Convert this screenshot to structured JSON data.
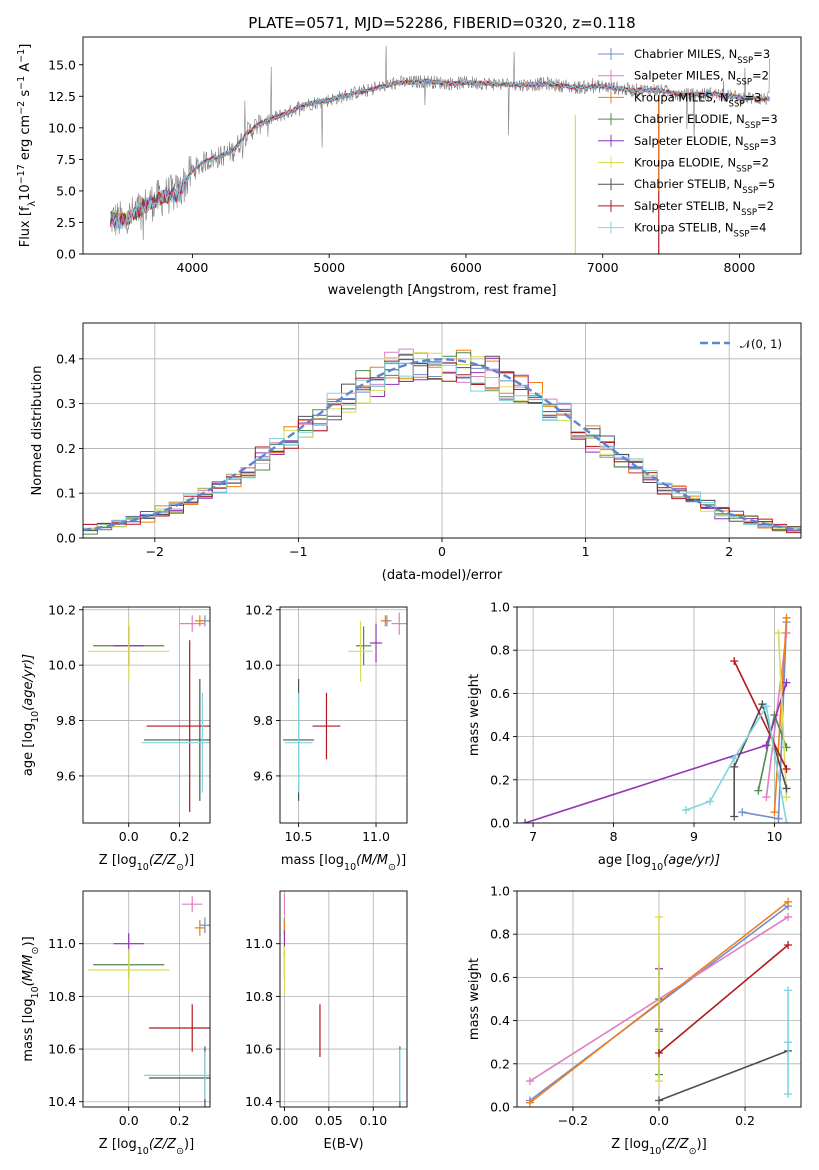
{
  "figure": {
    "title": "PLATE=0571, MJD=52286, FIBERID=0320, z=0.118"
  },
  "series_labels": [
    "Chabrier MILES, N",
    "Salpeter MILES, N",
    "Kroupa MILES, N",
    "Chabrier ELODIE, N",
    "Salpeter ELODIE, N",
    "Kroupa ELODIE, N",
    "Chabrier STELIB, N",
    "Salpeter STELIB, N",
    "Kroupa STELIB, N"
  ],
  "series_ssp": [
    "3",
    "2",
    "3",
    "3",
    "3",
    "2",
    "5",
    "2",
    "4"
  ],
  "legend_sub": "SSP",
  "series_colors": [
    "#6f8fd0",
    "#e07ec2",
    "#ef7f1a",
    "#4f8a4f",
    "#8e35b8",
    "#d8dc5a",
    "#505050",
    "#b2181b",
    "#80d4de"
  ],
  "chart_data": [
    {
      "type": "line",
      "title": "PLATE=0571, MJD=52286, FIBERID=0320, z=0.118",
      "xlabel": "wavelength [Angstrom, rest frame]",
      "ylabel_parts": [
        "Flux [f",
        "λ",
        "10",
        "−17",
        " erg cm",
        "−2",
        " s",
        "−1",
        " A",
        "−1",
        "]"
      ],
      "xlim": [
        3200,
        8450
      ],
      "ylim": [
        0,
        17.2
      ],
      "xticks": [
        4000,
        5000,
        6000,
        7000,
        8000
      ],
      "yticks": [
        0.0,
        2.5,
        5.0,
        7.5,
        10.0,
        12.5,
        15.0
      ],
      "ytick_labels": [
        "0.0",
        "2.5",
        "5.0",
        "7.5",
        "10.0",
        "12.5",
        "15.0"
      ],
      "legend_position": "right",
      "continuum": [
        [
          3400,
          2.8
        ],
        [
          3500,
          2.6
        ],
        [
          3600,
          3.4
        ],
        [
          3700,
          4.1
        ],
        [
          3800,
          4.6
        ],
        [
          3900,
          4.9
        ],
        [
          4000,
          6.6
        ],
        [
          4100,
          7.4
        ],
        [
          4200,
          7.7
        ],
        [
          4300,
          8.2
        ],
        [
          4400,
          9.6
        ],
        [
          4500,
          10.4
        ],
        [
          4600,
          10.8
        ],
        [
          4700,
          11.2
        ],
        [
          4800,
          11.8
        ],
        [
          4900,
          12.0
        ],
        [
          5000,
          12.2
        ],
        [
          5100,
          12.5
        ],
        [
          5200,
          12.8
        ],
        [
          5300,
          13.0
        ],
        [
          5400,
          13.3
        ],
        [
          5500,
          13.6
        ],
        [
          5600,
          13.6
        ],
        [
          5700,
          13.7
        ],
        [
          5800,
          13.6
        ],
        [
          5900,
          13.5
        ],
        [
          6000,
          13.6
        ],
        [
          6200,
          13.5
        ],
        [
          6400,
          13.4
        ],
        [
          6600,
          13.5
        ],
        [
          6800,
          13.2
        ],
        [
          7000,
          13.3
        ],
        [
          7200,
          13.0
        ],
        [
          7400,
          13.0
        ],
        [
          7600,
          12.6
        ],
        [
          7800,
          12.7
        ],
        [
          8000,
          12.4
        ],
        [
          8200,
          12.3
        ]
      ]
    },
    {
      "type": "histogram",
      "xlabel": "(data-model)/error",
      "ylabel": "Normed distribution",
      "xlim": [
        -2.5,
        2.5
      ],
      "ylim": [
        0,
        0.48
      ],
      "xticks": [
        -2,
        -1,
        0,
        1,
        2
      ],
      "xtick_labels": [
        "−2",
        "−1",
        "0",
        "1",
        "2"
      ],
      "yticks": [
        0.0,
        0.1,
        0.2,
        0.3,
        0.4
      ],
      "ytick_labels": [
        "0.0",
        "0.1",
        "0.2",
        "0.3",
        "0.4"
      ],
      "bin_width": 0.1,
      "gaussian_label": "𝒩(0, 1)",
      "gaussian_mean": 0,
      "gaussian_sigma": 1,
      "legend_position": "top-right"
    },
    {
      "type": "scatter",
      "xlabel_parts": [
        "Z [log",
        "10",
        "(Z/Z",
        "⊙",
        ")]"
      ],
      "ylabel_parts": [
        "age  [log",
        "10",
        "(age/yr)]"
      ],
      "xlim": [
        -0.18,
        0.32
      ],
      "ylim": [
        9.43,
        10.21
      ],
      "xticks": [
        0.0,
        0.2
      ],
      "xtick_labels": [
        "0.0",
        "0.2"
      ],
      "yticks": [
        9.6,
        9.8,
        10.0,
        10.2
      ],
      "ytick_labels": [
        "9.6",
        "9.8",
        "10.0",
        "10.2"
      ],
      "points": [
        {
          "series": 0,
          "x": 0.3,
          "y": 10.16,
          "xerr": 0.02,
          "yerr": 0.02
        },
        {
          "series": 1,
          "x": 0.25,
          "y": 10.15,
          "xerr": 0.05,
          "yerr": 0.03
        },
        {
          "series": 2,
          "x": 0.28,
          "y": 10.16,
          "xerr": 0.02,
          "yerr": 0.02
        },
        {
          "series": 3,
          "x": 0.0,
          "y": 10.07,
          "xerr": 0.14,
          "yerr": 0.07
        },
        {
          "series": 4,
          "x": 0.0,
          "y": 10.07,
          "xerr": 0.06,
          "yerr": 0.07
        },
        {
          "series": 5,
          "x": 0.0,
          "y": 10.05,
          "xerr": 0.16,
          "yerr": 0.11
        },
        {
          "series": 6,
          "x": 0.28,
          "y": 9.73,
          "xerr": 0.22,
          "yerr": 0.22
        },
        {
          "series": 7,
          "x": 0.24,
          "y": 9.78,
          "xerr": 0.17,
          "yerr": 0.31
        },
        {
          "series": 8,
          "x": 0.29,
          "y": 9.72,
          "xerr": 0.24,
          "yerr": 0.18
        }
      ]
    },
    {
      "type": "scatter",
      "xlabel_parts": [
        "mass [log",
        "10",
        "(M/M",
        "⊙",
        ")]"
      ],
      "xlim": [
        10.38,
        11.2
      ],
      "ylim": [
        9.43,
        10.21
      ],
      "xticks": [
        10.5,
        11.0
      ],
      "xtick_labels": [
        "10.5",
        "11.0"
      ],
      "yticks": [
        9.6,
        9.8,
        10.0,
        10.2
      ],
      "ytick_labels": [
        "9.6",
        "9.8",
        "10.0",
        "10.2"
      ],
      "points": [
        {
          "series": 0,
          "x": 11.07,
          "y": 10.16,
          "xerr": 0.03,
          "yerr": 0.02
        },
        {
          "series": 1,
          "x": 11.15,
          "y": 10.15,
          "xerr": 0.05,
          "yerr": 0.04
        },
        {
          "series": 2,
          "x": 11.06,
          "y": 10.16,
          "xerr": 0.03,
          "yerr": 0.02
        },
        {
          "series": 3,
          "x": 10.92,
          "y": 10.07,
          "xerr": 0.05,
          "yerr": 0.07
        },
        {
          "series": 4,
          "x": 11.0,
          "y": 10.08,
          "xerr": 0.04,
          "yerr": 0.07
        },
        {
          "series": 5,
          "x": 10.9,
          "y": 10.05,
          "xerr": 0.08,
          "yerr": 0.11
        },
        {
          "series": 6,
          "x": 10.5,
          "y": 9.73,
          "xerr": 0.1,
          "yerr": 0.22
        },
        {
          "series": 7,
          "x": 10.68,
          "y": 9.78,
          "xerr": 0.09,
          "yerr": 0.12
        },
        {
          "series": 8,
          "x": 10.5,
          "y": 9.72,
          "xerr": 0.09,
          "yerr": 0.18
        }
      ]
    },
    {
      "type": "line",
      "xlabel_parts": [
        "age  [log",
        "10",
        "(age/yr)]"
      ],
      "ylabel": "mass weight",
      "xlim": [
        6.8,
        10.33
      ],
      "ylim": [
        0,
        1.0
      ],
      "xticks": [
        7,
        8,
        9,
        10
      ],
      "xtick_labels": [
        "7",
        "8",
        "9",
        "10"
      ],
      "yticks": [
        0.0,
        0.2,
        0.4,
        0.6,
        0.8,
        1.0
      ],
      "ytick_labels": [
        "0.0",
        "0.2",
        "0.4",
        "0.6",
        "0.8",
        "1.0"
      ],
      "series": [
        {
          "series": 0,
          "x": [
            9.6,
            10.05,
            10.15
          ],
          "y": [
            0.05,
            0.02,
            0.93
          ]
        },
        {
          "series": 1,
          "x": [
            9.9,
            10.15
          ],
          "y": [
            0.12,
            0.88
          ]
        },
        {
          "series": 2,
          "x": [
            10.0,
            10.15
          ],
          "y": [
            0.05,
            0.95
          ]
        },
        {
          "series": 3,
          "x": [
            9.8,
            10.0,
            10.15
          ],
          "y": [
            0.15,
            0.5,
            0.35
          ]
        },
        {
          "series": 4,
          "x": [
            6.9,
            9.9,
            10.15
          ],
          "y": [
            0.0,
            0.36,
            0.65
          ]
        },
        {
          "series": 5,
          "x": [
            10.05,
            10.15
          ],
          "y": [
            0.88,
            0.12
          ]
        },
        {
          "series": 6,
          "x": [
            9.5,
            9.5,
            9.85,
            10.15
          ],
          "y": [
            0.03,
            0.26,
            0.55,
            0.16
          ]
        },
        {
          "series": 7,
          "x": [
            9.5,
            10.15
          ],
          "y": [
            0.75,
            0.25
          ]
        },
        {
          "series": 8,
          "x": [
            8.9,
            9.2,
            9.5,
            9.9,
            10.15
          ],
          "y": [
            0.06,
            0.1,
            0.3,
            0.54,
            0.0
          ]
        }
      ]
    },
    {
      "type": "scatter",
      "xlabel_parts": [
        "Z [log",
        "10",
        "(Z/Z",
        "⊙",
        ")]"
      ],
      "ylabel_parts": [
        "mass [log",
        "10",
        "(M/M",
        "⊙",
        ")]"
      ],
      "xlim": [
        -0.18,
        0.32
      ],
      "ylim": [
        10.38,
        11.2
      ],
      "xticks": [
        0.0,
        0.2
      ],
      "xtick_labels": [
        "0.0",
        "0.2"
      ],
      "yticks": [
        10.4,
        10.6,
        10.8,
        11.0
      ],
      "ytick_labels": [
        "10.4",
        "10.6",
        "10.8",
        "11.0"
      ],
      "points": [
        {
          "series": 0,
          "x": 0.3,
          "y": 11.07,
          "xerr": 0.02,
          "yerr": 0.03
        },
        {
          "series": 1,
          "x": 0.25,
          "y": 11.15,
          "xerr": 0.04,
          "yerr": 0.03
        },
        {
          "series": 2,
          "x": 0.28,
          "y": 11.06,
          "xerr": 0.02,
          "yerr": 0.03
        },
        {
          "series": 3,
          "x": 0.0,
          "y": 10.92,
          "xerr": 0.14,
          "yerr": 0.05
        },
        {
          "series": 4,
          "x": 0.0,
          "y": 11.0,
          "xerr": 0.06,
          "yerr": 0.04
        },
        {
          "series": 5,
          "x": 0.0,
          "y": 10.9,
          "xerr": 0.16,
          "yerr": 0.08
        },
        {
          "series": 6,
          "x": 0.3,
          "y": 10.49,
          "xerr": 0.22,
          "yerr": 0.12
        },
        {
          "series": 7,
          "x": 0.25,
          "y": 10.68,
          "xerr": 0.17,
          "yerr": 0.09
        },
        {
          "series": 8,
          "x": 0.3,
          "y": 10.5,
          "xerr": 0.24,
          "yerr": 0.09
        }
      ]
    },
    {
      "type": "scatter",
      "xlabel": "E(B-V)",
      "xlim": [
        -0.005,
        0.138
      ],
      "ylim": [
        10.38,
        11.2
      ],
      "xticks": [
        0.0,
        0.05,
        0.1
      ],
      "xtick_labels": [
        "0.00",
        "0.05",
        "0.10"
      ],
      "yticks": [
        10.4,
        10.6,
        10.8,
        11.0
      ],
      "ytick_labels": [
        "10.4",
        "10.6",
        "10.8",
        "11.0"
      ],
      "points": [
        {
          "series": 0,
          "x": 0.0,
          "y": 11.07,
          "yerr": 0.03
        },
        {
          "series": 1,
          "x": 0.0,
          "y": 11.15,
          "yerr": 0.04
        },
        {
          "series": 2,
          "x": 0.0,
          "y": 11.06,
          "yerr": 0.03
        },
        {
          "series": 3,
          "x": 0.0,
          "y": 10.92,
          "yerr": 0.05
        },
        {
          "series": 4,
          "x": 0.0,
          "y": 11.0,
          "yerr": 0.05
        },
        {
          "series": 5,
          "x": 0.0,
          "y": 10.9,
          "yerr": 0.09
        },
        {
          "series": 6,
          "x": 0.13,
          "y": 10.49,
          "yerr": 0.12
        },
        {
          "series": 7,
          "x": 0.04,
          "y": 10.67,
          "yerr": 0.1
        },
        {
          "series": 8,
          "x": 0.13,
          "y": 10.5,
          "yerr": 0.1
        }
      ]
    },
    {
      "type": "line",
      "xlabel_parts": [
        "Z [log",
        "10",
        "(Z/Z",
        "⊙",
        ")]"
      ],
      "ylabel": "mass weight",
      "xlim": [
        -0.33,
        0.33
      ],
      "ylim": [
        0,
        1.0
      ],
      "xticks": [
        -0.2,
        0.0,
        0.2
      ],
      "xtick_labels": [
        "−0.2",
        "0.0",
        "0.2"
      ],
      "yticks": [
        0.0,
        0.2,
        0.4,
        0.6,
        0.8,
        1.0
      ],
      "ytick_labels": [
        "0.0",
        "0.2",
        "0.4",
        "0.6",
        "0.8",
        "1.0"
      ],
      "series": [
        {
          "series": 0,
          "x": [
            -0.3,
            0.3
          ],
          "y": [
            0.03,
            0.93
          ]
        },
        {
          "series": 1,
          "x": [
            -0.3,
            0.3
          ],
          "y": [
            0.12,
            0.88
          ]
        },
        {
          "series": 2,
          "x": [
            -0.3,
            0.3
          ],
          "y": [
            0.02,
            0.95
          ]
        },
        {
          "series": 3,
          "x": [
            0.0,
            0.0,
            0.0
          ],
          "y": [
            0.15,
            0.5,
            0.35
          ]
        },
        {
          "series": 4,
          "x": [
            0.0,
            0.0
          ],
          "y": [
            0.36,
            0.64
          ]
        },
        {
          "series": 5,
          "x": [
            0.0,
            0.0
          ],
          "y": [
            0.12,
            0.88
          ]
        },
        {
          "series": 6,
          "x": [
            0.0,
            0.3
          ],
          "y": [
            0.03,
            0.26
          ]
        },
        {
          "series": 7,
          "x": [
            0.0,
            0.3
          ],
          "y": [
            0.25,
            0.75
          ]
        },
        {
          "series": 8,
          "x": [
            0.3,
            0.3,
            0.3
          ],
          "y": [
            0.06,
            0.3,
            0.54
          ]
        }
      ]
    }
  ]
}
